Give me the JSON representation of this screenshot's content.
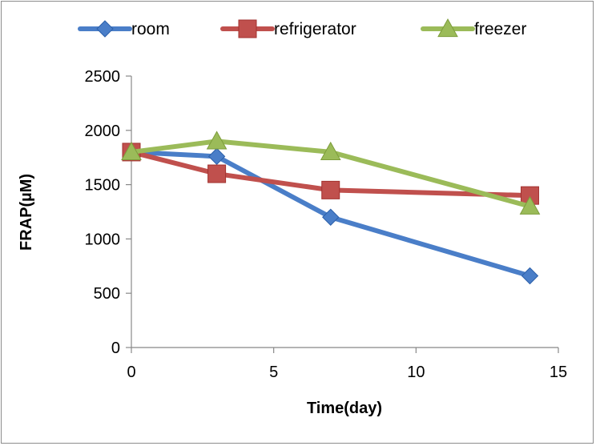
{
  "chart_data": {
    "type": "line",
    "title": "",
    "xlabel": "Time(day)",
    "ylabel": "FRAP(µM)",
    "xlim": [
      0,
      15
    ],
    "ylim": [
      0,
      2500
    ],
    "x_ticks": [
      0,
      5,
      10,
      15
    ],
    "y_ticks": [
      0,
      500,
      1000,
      1500,
      2000,
      2500
    ],
    "grid": false,
    "legend_position": "top",
    "series": [
      {
        "name": "room",
        "color": "#4a7ec8",
        "marker": "diamond",
        "x": [
          0,
          3,
          7,
          14
        ],
        "y": [
          1800,
          1760,
          1200,
          660
        ]
      },
      {
        "name": "refrigerator",
        "color": "#c0504d",
        "marker": "square",
        "x": [
          0,
          3,
          7,
          14
        ],
        "y": [
          1800,
          1600,
          1450,
          1400
        ]
      },
      {
        "name": "freezer",
        "color": "#9bbb59",
        "marker": "triangle",
        "x": [
          0,
          3,
          7,
          14
        ],
        "y": [
          1800,
          1900,
          1800,
          1300
        ]
      }
    ]
  }
}
